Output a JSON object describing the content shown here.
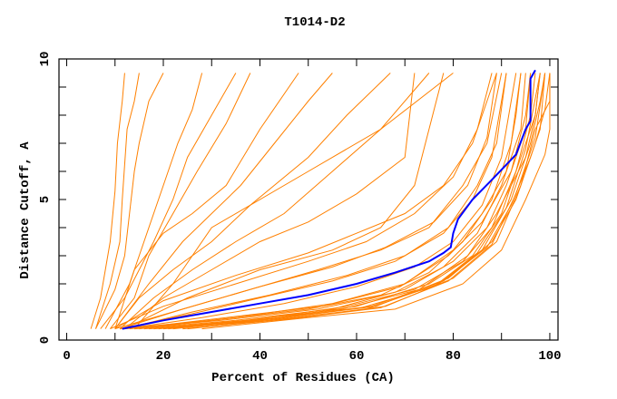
{
  "chart_data": {
    "type": "line",
    "title": "T1014-D2",
    "xlabel": "Percent of Residues (CA)",
    "ylabel": "Distance Cutoff, A",
    "xlim": [
      -1.6,
      101.7
    ],
    "ylim": [
      0,
      10
    ],
    "xticks": [
      "0",
      "20",
      "40",
      "60",
      "80",
      "100"
    ],
    "yticks": [
      "0",
      "5",
      "10"
    ],
    "grid": false,
    "colors": {
      "models": "#ff8000",
      "highlight": "#0000ff"
    },
    "highlight": [
      [
        11.5,
        0.4
      ],
      [
        20,
        0.7
      ],
      [
        30,
        1.0
      ],
      [
        40,
        1.3
      ],
      [
        50,
        1.6
      ],
      [
        60,
        2.0
      ],
      [
        68,
        2.4
      ],
      [
        75,
        2.8
      ],
      [
        78,
        3.1
      ],
      [
        79.5,
        3.3
      ],
      [
        80,
        3.8
      ],
      [
        81,
        4.3
      ],
      [
        84,
        5.0
      ],
      [
        88,
        5.7
      ],
      [
        93,
        6.6
      ],
      [
        95,
        7.5
      ],
      [
        96,
        7.8
      ],
      [
        96,
        9.3
      ],
      [
        97,
        9.6
      ]
    ],
    "series": [
      [
        [
          5,
          0.4
        ],
        [
          7,
          1.5
        ],
        [
          8,
          2.5
        ],
        [
          9,
          3.5
        ],
        [
          10,
          5.3
        ],
        [
          10.5,
          7
        ],
        [
          11.5,
          8.5
        ],
        [
          12,
          9.5
        ]
      ],
      [
        [
          6,
          0.4
        ],
        [
          9,
          2
        ],
        [
          11,
          3.5
        ],
        [
          11.5,
          5
        ],
        [
          12.5,
          7.5
        ],
        [
          14,
          8.5
        ],
        [
          15,
          9.5
        ]
      ],
      [
        [
          6,
          0.4
        ],
        [
          10,
          1.8
        ],
        [
          12,
          3
        ],
        [
          13,
          4.5
        ],
        [
          14,
          6
        ],
        [
          15,
          7
        ],
        [
          17,
          8.5
        ],
        [
          20,
          9.5
        ]
      ],
      [
        [
          7,
          0.4
        ],
        [
          12,
          1.5
        ],
        [
          15,
          2.5
        ],
        [
          18,
          3.5
        ],
        [
          22,
          5
        ],
        [
          25,
          6.5
        ],
        [
          30,
          8
        ],
        [
          35,
          9.5
        ]
      ],
      [
        [
          8,
          0.4
        ],
        [
          13,
          2
        ],
        [
          16,
          3.5
        ],
        [
          20,
          5.5
        ],
        [
          23,
          7
        ],
        [
          26,
          8.2
        ],
        [
          28,
          9.5
        ]
      ],
      [
        [
          9,
          0.4
        ],
        [
          14,
          1.5
        ],
        [
          17,
          3
        ],
        [
          22,
          4.5
        ],
        [
          27,
          6
        ],
        [
          33,
          7.7
        ],
        [
          38,
          9.5
        ]
      ],
      [
        [
          10,
          0.4
        ],
        [
          14,
          2.5
        ],
        [
          20,
          3.8
        ],
        [
          26,
          4.5
        ],
        [
          33,
          5.5
        ],
        [
          40,
          7.5
        ],
        [
          48,
          9.5
        ]
      ],
      [
        [
          10,
          0.4
        ],
        [
          17,
          2
        ],
        [
          24,
          3.5
        ],
        [
          30,
          4.5
        ],
        [
          36,
          5.5
        ],
        [
          43,
          7
        ],
        [
          50,
          8.5
        ],
        [
          55,
          9.5
        ]
      ],
      [
        [
          10,
          0.4
        ],
        [
          15,
          1.5
        ],
        [
          22,
          2.5
        ],
        [
          30,
          3.5
        ],
        [
          38,
          4.8
        ],
        [
          50,
          6.5
        ],
        [
          58,
          8
        ],
        [
          67,
          9.5
        ]
      ],
      [
        [
          11,
          0.4
        ],
        [
          18,
          1.5
        ],
        [
          26,
          2.5
        ],
        [
          35,
          3.5
        ],
        [
          45,
          4.5
        ],
        [
          55,
          6
        ],
        [
          65,
          7.5
        ],
        [
          75,
          9.5
        ]
      ],
      [
        [
          12,
          0.4
        ],
        [
          20,
          1.5
        ],
        [
          30,
          2.5
        ],
        [
          40,
          3.5
        ],
        [
          50,
          4.2
        ],
        [
          60,
          5.2
        ],
        [
          70,
          6.5
        ],
        [
          72,
          9.5
        ]
      ],
      [
        [
          14,
          0.4
        ],
        [
          22,
          2
        ],
        [
          30,
          4
        ],
        [
          50,
          6
        ],
        [
          65,
          7.5
        ],
        [
          80,
          9.5
        ]
      ],
      [
        [
          12,
          0.4
        ],
        [
          25,
          1.5
        ],
        [
          40,
          2.5
        ],
        [
          55,
          3.2
        ],
        [
          65,
          4
        ],
        [
          72,
          5.5
        ],
        [
          75,
          7.5
        ],
        [
          78,
          9.5
        ]
      ],
      [
        [
          11,
          0.4
        ],
        [
          30,
          0.7
        ],
        [
          50,
          1.1
        ],
        [
          65,
          1.6
        ],
        [
          75,
          2.4
        ],
        [
          82,
          3.5
        ],
        [
          88,
          5
        ],
        [
          92,
          7
        ],
        [
          94,
          9.5
        ]
      ],
      [
        [
          12,
          0.4
        ],
        [
          32,
          0.7
        ],
        [
          52,
          1.1
        ],
        [
          68,
          1.7
        ],
        [
          78,
          2.6
        ],
        [
          85,
          3.8
        ],
        [
          90,
          5.5
        ],
        [
          94,
          7.5
        ],
        [
          95,
          9.5
        ]
      ],
      [
        [
          14,
          0.4
        ],
        [
          35,
          0.7
        ],
        [
          55,
          1.1
        ],
        [
          70,
          1.8
        ],
        [
          80,
          2.8
        ],
        [
          87,
          4
        ],
        [
          91,
          5.5
        ],
        [
          95,
          7.5
        ],
        [
          96,
          9.5
        ]
      ],
      [
        [
          16,
          0.4
        ],
        [
          38,
          0.7
        ],
        [
          58,
          1.2
        ],
        [
          72,
          1.8
        ],
        [
          82,
          2.8
        ],
        [
          88,
          4
        ],
        [
          93,
          6
        ],
        [
          96,
          8
        ],
        [
          97,
          9.5
        ]
      ],
      [
        [
          18,
          0.4
        ],
        [
          40,
          0.7
        ],
        [
          60,
          1.2
        ],
        [
          75,
          2
        ],
        [
          84,
          3
        ],
        [
          90,
          4.5
        ],
        [
          94,
          6.5
        ],
        [
          97,
          8
        ],
        [
          98,
          9.5
        ]
      ],
      [
        [
          20,
          0.4
        ],
        [
          42,
          0.7
        ],
        [
          62,
          1.1
        ],
        [
          77,
          2
        ],
        [
          86,
          3.2
        ],
        [
          92,
          5
        ],
        [
          96,
          7
        ],
        [
          98,
          8.5
        ],
        [
          99,
          9.5
        ]
      ],
      [
        [
          22,
          0.4
        ],
        [
          45,
          0.8
        ],
        [
          64,
          1.2
        ],
        [
          79,
          2.2
        ],
        [
          88,
          3.5
        ],
        [
          93,
          5
        ],
        [
          97,
          7
        ],
        [
          99,
          8.2
        ],
        [
          100,
          9.5
        ]
      ],
      [
        [
          25,
          0.4
        ],
        [
          48,
          0.8
        ],
        [
          66,
          1.2
        ],
        [
          80,
          2.2
        ],
        [
          89,
          3.5
        ],
        [
          94,
          5.5
        ],
        [
          97,
          7.5
        ],
        [
          100,
          8.5
        ],
        [
          100,
          9.5
        ]
      ],
      [
        [
          28,
          0.4
        ],
        [
          50,
          0.8
        ],
        [
          68,
          1.1
        ],
        [
          82,
          2
        ],
        [
          90,
          3.2
        ],
        [
          95,
          5
        ],
        [
          99,
          6.6
        ],
        [
          100,
          7.5
        ],
        [
          100,
          9.5
        ]
      ],
      [
        [
          12,
          0.4
        ],
        [
          28,
          0.8
        ],
        [
          45,
          1.3
        ],
        [
          60,
          1.9
        ],
        [
          72,
          2.6
        ],
        [
          80,
          3.5
        ],
        [
          86,
          4.8
        ],
        [
          90,
          6.5
        ],
        [
          92,
          8.5
        ],
        [
          93,
          9.5
        ]
      ],
      [
        [
          11,
          0.4
        ],
        [
          25,
          0.9
        ],
        [
          40,
          1.5
        ],
        [
          55,
          2.1
        ],
        [
          68,
          2.8
        ],
        [
          78,
          3.8
        ],
        [
          84,
          5
        ],
        [
          88,
          6.5
        ],
        [
          90,
          8.5
        ],
        [
          91,
          9.5
        ]
      ],
      [
        [
          10,
          0.4
        ],
        [
          22,
          1
        ],
        [
          38,
          1.8
        ],
        [
          52,
          2.5
        ],
        [
          65,
          3.2
        ],
        [
          75,
          4
        ],
        [
          82,
          5.5
        ],
        [
          87,
          7
        ],
        [
          90,
          9.5
        ]
      ],
      [
        [
          9,
          0.4
        ],
        [
          20,
          1.2
        ],
        [
          35,
          2
        ],
        [
          50,
          2.8
        ],
        [
          62,
          3.5
        ],
        [
          72,
          4.5
        ],
        [
          80,
          5.8
        ],
        [
          85,
          7.5
        ],
        [
          88,
          9.5
        ]
      ],
      [
        [
          10,
          0.4
        ],
        [
          20,
          1.4
        ],
        [
          35,
          2.3
        ],
        [
          50,
          3.1
        ],
        [
          60,
          3.8
        ],
        [
          70,
          4.5
        ],
        [
          78,
          5.5
        ],
        [
          84,
          7
        ],
        [
          87,
          8.5
        ],
        [
          89,
          9.5
        ]
      ],
      [
        [
          15,
          0.4
        ],
        [
          35,
          0.8
        ],
        [
          55,
          1.3
        ],
        [
          70,
          2
        ],
        [
          80,
          3.2
        ],
        [
          86,
          4.5
        ],
        [
          91,
          6
        ],
        [
          93,
          8
        ],
        [
          94,
          9.5
        ]
      ],
      [
        [
          13,
          0.4
        ],
        [
          33,
          0.8
        ],
        [
          53,
          1.2
        ],
        [
          69,
          1.9
        ],
        [
          79,
          3
        ],
        [
          86,
          4.2
        ],
        [
          92,
          6
        ],
        [
          95,
          8
        ],
        [
          96,
          9.5
        ]
      ],
      [
        [
          17,
          0.4
        ],
        [
          37,
          0.7
        ],
        [
          57,
          1.1
        ],
        [
          73,
          1.8
        ],
        [
          83,
          3
        ],
        [
          89,
          4.5
        ],
        [
          95,
          6.5
        ],
        [
          97,
          8
        ],
        [
          98,
          9.5
        ]
      ],
      [
        [
          19,
          0.4
        ],
        [
          44,
          0.8
        ],
        [
          63,
          1.2
        ],
        [
          78,
          2.1
        ],
        [
          87,
          3.3
        ],
        [
          92,
          4.8
        ],
        [
          96,
          6.5
        ],
        [
          98,
          7.5
        ],
        [
          99,
          9.5
        ]
      ],
      [
        [
          12,
          0.4
        ],
        [
          26,
          1
        ],
        [
          42,
          1.6
        ],
        [
          58,
          2.3
        ],
        [
          70,
          3
        ],
        [
          79,
          4
        ],
        [
          85,
          5.5
        ],
        [
          89,
          7
        ],
        [
          91,
          9.5
        ]
      ],
      [
        [
          11,
          0.4
        ],
        [
          24,
          1.1
        ],
        [
          40,
          1.9
        ],
        [
          55,
          2.6
        ],
        [
          66,
          3.3
        ],
        [
          76,
          4.2
        ],
        [
          83,
          5.5
        ],
        [
          87,
          7.2
        ],
        [
          89,
          9.5
        ]
      ],
      [
        [
          24,
          0.4
        ],
        [
          46,
          0.75
        ],
        [
          65,
          1.15
        ],
        [
          79,
          2.1
        ],
        [
          88,
          3.4
        ],
        [
          93,
          5.2
        ],
        [
          97,
          7.2
        ],
        [
          99,
          9.5
        ]
      ],
      [
        [
          21,
          0.4
        ],
        [
          43,
          0.75
        ],
        [
          61,
          1.15
        ],
        [
          76,
          1.9
        ],
        [
          85,
          3.1
        ],
        [
          91,
          4.7
        ],
        [
          95,
          6.8
        ],
        [
          98,
          9.5
        ]
      ]
    ]
  }
}
